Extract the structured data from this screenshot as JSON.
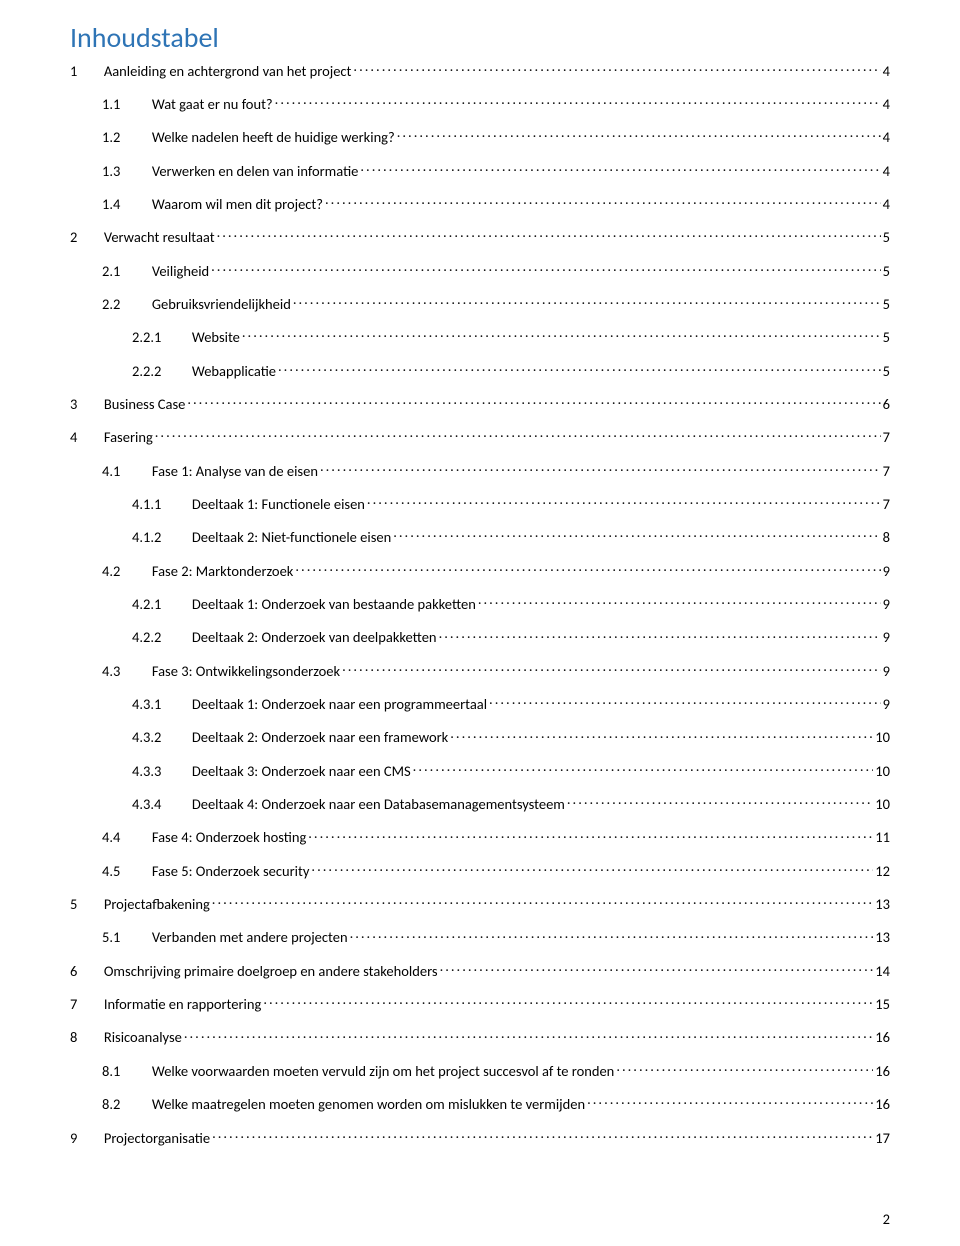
{
  "title": {
    "text": "Inhoudstabel",
    "color": "#2e74b5"
  },
  "text_color": "#000000",
  "background_color": "#ffffff",
  "page_number": "2",
  "toc": [
    {
      "num": "1",
      "text": "Aanleiding en achtergrond van het project",
      "page": "4",
      "indent": 0
    },
    {
      "num": "1.1",
      "text": "Wat gaat er nu fout?",
      "page": "4",
      "indent": 1
    },
    {
      "num": "1.2",
      "text": "Welke nadelen heeft de huidige werking?",
      "page": "4",
      "indent": 1
    },
    {
      "num": "1.3",
      "text": "Verwerken en delen van informatie",
      "page": "4",
      "indent": 1
    },
    {
      "num": "1.4",
      "text": "Waarom wil men dit project?",
      "page": "4",
      "indent": 1
    },
    {
      "num": "2",
      "text": "Verwacht resultaat",
      "page": "5",
      "indent": 0
    },
    {
      "num": "2.1",
      "text": "Veiligheid",
      "page": "5",
      "indent": 1
    },
    {
      "num": "2.2",
      "text": "Gebruiksvriendelijkheid",
      "page": "5",
      "indent": 1
    },
    {
      "num": "2.2.1",
      "text": "Website",
      "page": "5",
      "indent": 2
    },
    {
      "num": "2.2.2",
      "text": "Webapplicatie",
      "page": "5",
      "indent": 2
    },
    {
      "num": "3",
      "text": "Business Case",
      "page": "6",
      "indent": 0
    },
    {
      "num": "4",
      "text": "Fasering",
      "page": "7",
      "indent": 0
    },
    {
      "num": "4.1",
      "text": "Fase 1: Analyse van de eisen",
      "page": "7",
      "indent": 1
    },
    {
      "num": "4.1.1",
      "text": "Deeltaak 1: Functionele eisen",
      "page": "7",
      "indent": 2
    },
    {
      "num": "4.1.2",
      "text": "Deeltaak 2: Niet-functionele eisen",
      "page": "8",
      "indent": 2
    },
    {
      "num": "4.2",
      "text": "Fase 2: Marktonderzoek",
      "page": "9",
      "indent": 1
    },
    {
      "num": "4.2.1",
      "text": "Deeltaak 1: Onderzoek van bestaande pakketten",
      "page": "9",
      "indent": 2
    },
    {
      "num": "4.2.2",
      "text": "Deeltaak 2: Onderzoek van deelpakketten",
      "page": "9",
      "indent": 2
    },
    {
      "num": "4.3",
      "text": "Fase 3: Ontwikkelingsonderzoek",
      "page": "9",
      "indent": 1
    },
    {
      "num": "4.3.1",
      "text": "Deeltaak 1: Onderzoek naar een programmeertaal",
      "page": "9",
      "indent": 2
    },
    {
      "num": "4.3.2",
      "text": "Deeltaak 2: Onderzoek naar een framework",
      "page": "10",
      "indent": 2
    },
    {
      "num": "4.3.3",
      "text": "Deeltaak 3: Onderzoek naar een CMS",
      "page": "10",
      "indent": 2
    },
    {
      "num": "4.3.4",
      "text": "Deeltaak 4: Onderzoek naar een Databasemanagementsysteem",
      "page": "10",
      "indent": 2
    },
    {
      "num": "4.4",
      "text": "Fase 4: Onderzoek hosting",
      "page": "11",
      "indent": 1
    },
    {
      "num": "4.5",
      "text": "Fase 5: Onderzoek security",
      "page": "12",
      "indent": 1
    },
    {
      "num": "5",
      "text": "Projectafbakening",
      "page": "13",
      "indent": 0
    },
    {
      "num": "5.1",
      "text": "Verbanden met andere projecten",
      "page": "13",
      "indent": 1
    },
    {
      "num": "6",
      "text": "Omschrijving primaire doelgroep en andere stakeholders",
      "page": "14",
      "indent": 0
    },
    {
      "num": "7",
      "text": "Informatie en rapportering",
      "page": "15",
      "indent": 0
    },
    {
      "num": "8",
      "text": "Risicoanalyse",
      "page": "16",
      "indent": 0
    },
    {
      "num": "8.1",
      "text": "Welke voorwaarden moeten vervuld zijn om het project succesvol af te ronden",
      "page": "16",
      "indent": 1
    },
    {
      "num": "8.2",
      "text": "Welke maatregelen moeten genomen worden om mislukken te vermijden",
      "page": "16",
      "indent": 1
    },
    {
      "num": "9",
      "text": "Projectorganisatie",
      "page": "17",
      "indent": 0
    }
  ]
}
